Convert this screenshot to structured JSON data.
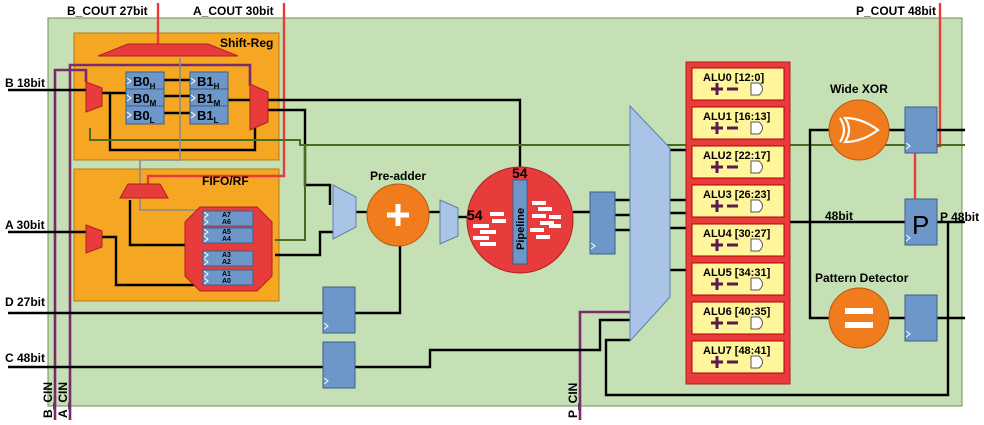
{
  "diagram": {
    "ports_top": {
      "b_cout": "B_COUT 27bit",
      "a_cout": "A_COUT 30bit",
      "p_cout": "P_COUT 48bit"
    },
    "ports_left": {
      "b_in": "B 18bit",
      "a_in": "A 30bit",
      "d_in": "D 27bit",
      "c_in": "C 48bit"
    },
    "ports_bottom": {
      "b_cin": "B_CIN",
      "a_cin": "A_CIN",
      "p_cin": "P_CIN"
    },
    "port_right": "P 48bit",
    "blocks": {
      "shift_reg": "Shift-Reg",
      "fifo_rf": "FIFO/RF",
      "pre_adder": "Pre-adder",
      "pipeline": "Pipeline",
      "wide_xor": "Wide XOR",
      "pattern_detector": "Pattern Detector",
      "p_reg": "P"
    },
    "b_regs": [
      {
        "base": "B0",
        "sub": "H"
      },
      {
        "base": "B0",
        "sub": "M"
      },
      {
        "base": "B0",
        "sub": "L"
      },
      {
        "base": "B1",
        "sub": "H"
      },
      {
        "base": "B1",
        "sub": "M"
      },
      {
        "base": "B1",
        "sub": "L"
      }
    ],
    "fifo_regs": [
      "A7",
      "A6",
      "A5",
      "A4",
      "A3",
      "A2",
      "A1",
      "A0"
    ],
    "mult_width_top": "54",
    "mult_width_left": "54",
    "bus_48": "48bit",
    "alus": [
      "ALU0 [12:0]",
      "ALU1 [16:13]",
      "ALU2 [22:17]",
      "ALU3 [26:23]",
      "ALU4 [30:27]",
      "ALU5 [34:31]",
      "ALU6 [40:35]",
      "ALU7 [48:41]"
    ],
    "colors": {
      "background_panel": "#c5e0b4",
      "block_orange": "#f5a623",
      "accent_red": "#e83b3b",
      "register_blue": "#6d97c9",
      "operator_orange": "#f07c1e",
      "alu_yellow": "#fff59a",
      "carry_purple": "#7a2a6e"
    }
  }
}
